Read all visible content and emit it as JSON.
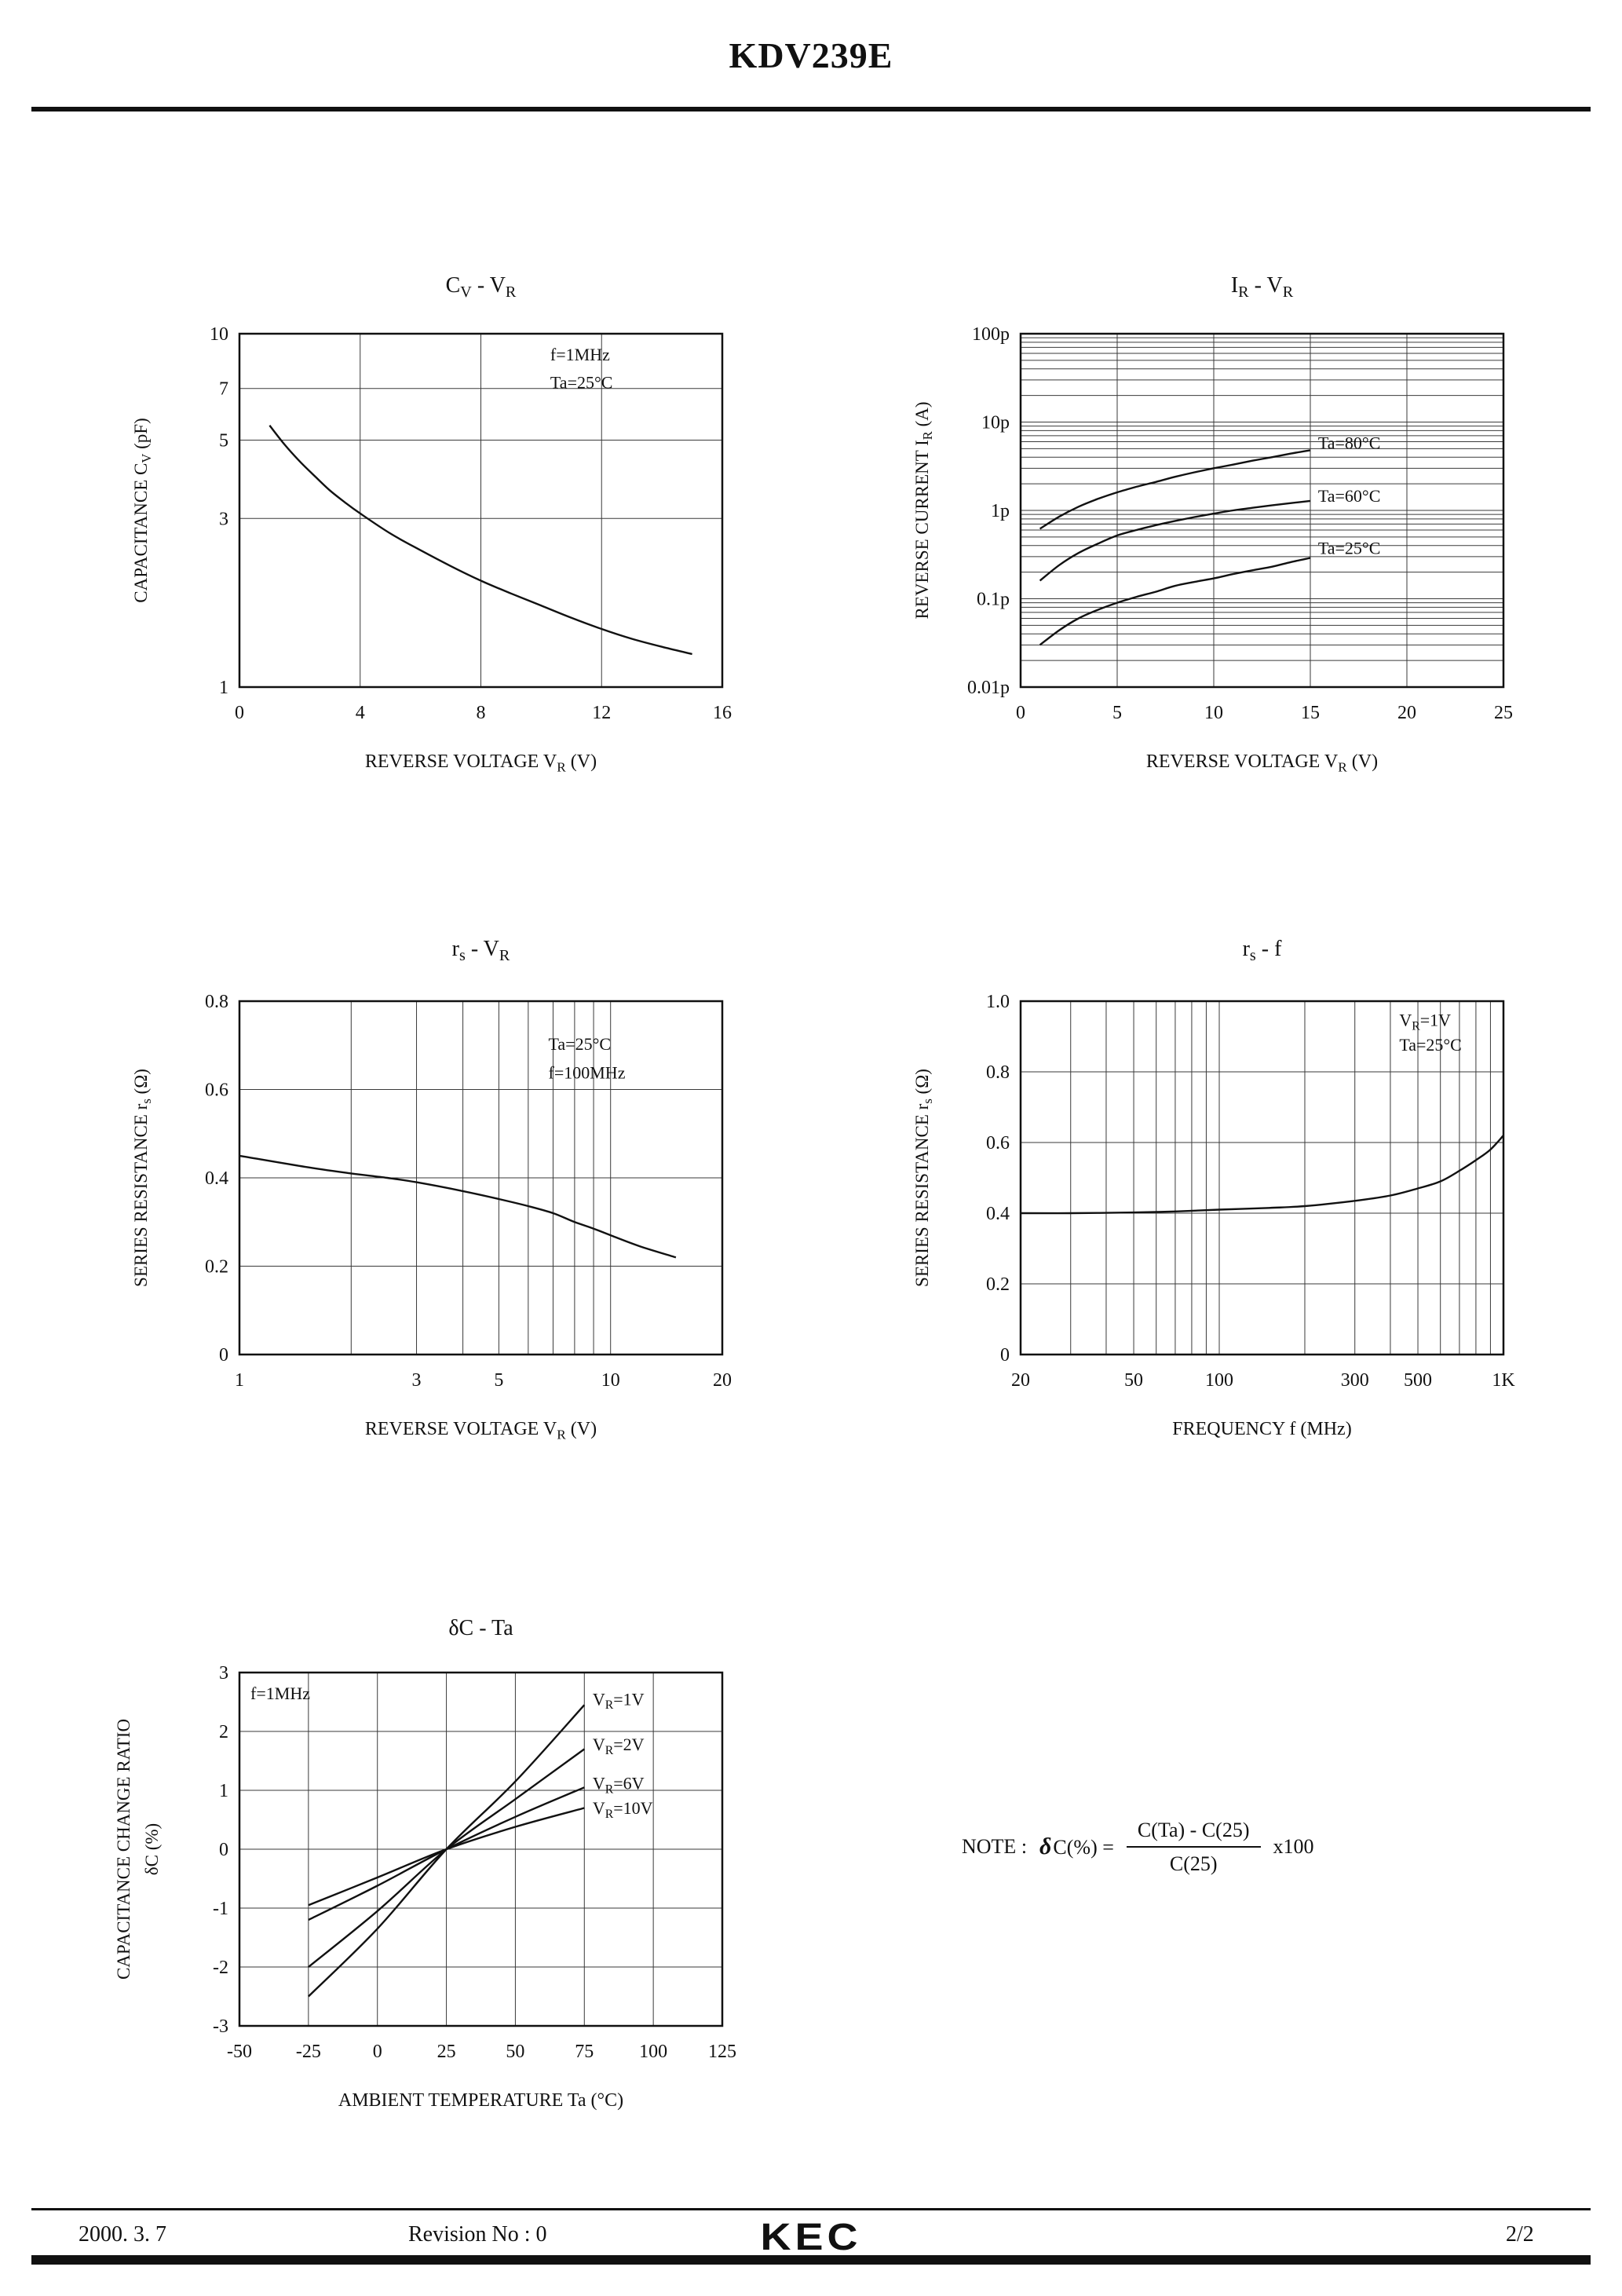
{
  "page": {
    "title": "KDV239E",
    "footer": {
      "date": "2000. 3. 7",
      "revision": "Revision No : 0",
      "logo": "KEC",
      "page_number": "2/2"
    }
  },
  "note": {
    "prefix": "NOTE  :",
    "delta": "δ",
    "lhs": "C(%) =",
    "numerator": "C(Ta)  -  C(25)",
    "denominator": "C(25)",
    "suffix": "x100"
  },
  "chart_data": [
    {
      "id": "cv-vr",
      "type": "line",
      "title": "C_{V}  -  V_{R}",
      "x": {
        "scale": "linear",
        "min": 0,
        "max": 16,
        "label": "REVERSE VOLTAGE V_{R}  (V)",
        "ticks": [
          {
            "v": 0,
            "l": "0"
          },
          {
            "v": 4,
            "l": "4"
          },
          {
            "v": 8,
            "l": "8"
          },
          {
            "v": 12,
            "l": "12"
          },
          {
            "v": 16,
            "l": "16"
          }
        ]
      },
      "y": {
        "scale": "log",
        "min": 1,
        "max": 10,
        "label": "CAPACITANCE C_{V}  (pF)",
        "ticks": [
          {
            "v": 1,
            "l": "1"
          },
          {
            "v": 3,
            "l": "3"
          },
          {
            "v": 5,
            "l": "5"
          },
          {
            "v": 7,
            "l": "7"
          },
          {
            "v": 10,
            "l": "10"
          }
        ]
      },
      "series": [
        {
          "name": "Cv",
          "points": [
            [
              1,
              5.5
            ],
            [
              1.5,
              4.85
            ],
            [
              2,
              4.35
            ],
            [
              2.5,
              3.95
            ],
            [
              3,
              3.6
            ],
            [
              3.5,
              3.33
            ],
            [
              4,
              3.1
            ],
            [
              5,
              2.72
            ],
            [
              6,
              2.44
            ],
            [
              7,
              2.2
            ],
            [
              8,
              2.0
            ],
            [
              9,
              1.84
            ],
            [
              10,
              1.7
            ],
            [
              11,
              1.57
            ],
            [
              12,
              1.46
            ],
            [
              13,
              1.37
            ],
            [
              14,
              1.3
            ],
            [
              15,
              1.24
            ]
          ]
        }
      ],
      "annotations": [
        {
          "text": "f=1MHz",
          "x": 10.3,
          "y": 8.4
        },
        {
          "text": "Ta=25°C",
          "x": 10.3,
          "y": 7.0
        }
      ]
    },
    {
      "id": "ir-vr",
      "type": "line",
      "title": "I_{R}  -  V_{R}",
      "x": {
        "scale": "linear",
        "min": 0,
        "max": 25,
        "label": "REVERSE VOLTAGE V_{R}  (V)",
        "ticks": [
          {
            "v": 0,
            "l": "0"
          },
          {
            "v": 5,
            "l": "5"
          },
          {
            "v": 10,
            "l": "10"
          },
          {
            "v": 15,
            "l": "15"
          },
          {
            "v": 20,
            "l": "20"
          },
          {
            "v": 25,
            "l": "25"
          }
        ]
      },
      "y": {
        "scale": "log",
        "min": 0.01,
        "max": 100,
        "label": "REVERSE CURRENT I_{R}  (A)",
        "ticks": [
          {
            "v": 100,
            "l": "100p"
          },
          {
            "v": 10,
            "l": "10p"
          },
          {
            "v": 1,
            "l": "1p"
          },
          {
            "v": 0.1,
            "l": "0.1p"
          },
          {
            "v": 0.01,
            "l": "0.01p"
          }
        ]
      },
      "series": [
        {
          "name": "Ta=80°C",
          "points": [
            [
              1,
              0.62
            ],
            [
              2,
              0.85
            ],
            [
              3,
              1.1
            ],
            [
              4,
              1.35
            ],
            [
              5,
              1.6
            ],
            [
              6,
              1.85
            ],
            [
              7,
              2.1
            ],
            [
              8,
              2.4
            ],
            [
              9,
              2.7
            ],
            [
              10,
              3.0
            ],
            [
              11,
              3.3
            ],
            [
              12,
              3.65
            ],
            [
              13,
              4.0
            ],
            [
              14,
              4.4
            ],
            [
              15,
              4.8
            ]
          ]
        },
        {
          "name": "Ta=60°C",
          "points": [
            [
              1,
              0.16
            ],
            [
              2,
              0.24
            ],
            [
              3,
              0.33
            ],
            [
              4,
              0.42
            ],
            [
              5,
              0.52
            ],
            [
              6,
              0.6
            ],
            [
              7,
              0.68
            ],
            [
              8,
              0.76
            ],
            [
              9,
              0.84
            ],
            [
              10,
              0.92
            ],
            [
              11,
              1.0
            ],
            [
              12,
              1.07
            ],
            [
              13,
              1.14
            ],
            [
              14,
              1.21
            ],
            [
              15,
              1.28
            ]
          ]
        },
        {
          "name": "Ta=25°C",
          "points": [
            [
              1,
              0.03
            ],
            [
              2,
              0.044
            ],
            [
              3,
              0.06
            ],
            [
              4,
              0.075
            ],
            [
              5,
              0.09
            ],
            [
              6,
              0.105
            ],
            [
              7,
              0.12
            ],
            [
              8,
              0.14
            ],
            [
              9,
              0.155
            ],
            [
              10,
              0.17
            ],
            [
              11,
              0.19
            ],
            [
              12,
              0.21
            ],
            [
              13,
              0.23
            ],
            [
              14,
              0.26
            ],
            [
              15,
              0.29
            ]
          ]
        }
      ],
      "annotations": [
        {
          "text": "Ta=80°C",
          "x": 15.4,
          "y": 5.0
        },
        {
          "text": "Ta=60°C",
          "x": 15.4,
          "y": 1.25
        },
        {
          "text": "Ta=25°C",
          "x": 15.4,
          "y": 0.32
        }
      ]
    },
    {
      "id": "rs-vr",
      "type": "line",
      "title": "r_{s}  -  V_{R}",
      "x": {
        "scale": "log",
        "min": 1,
        "max": 20,
        "label": "REVERSE VOLTAGE V_{R}  (V)",
        "ticks": [
          {
            "v": 1,
            "l": "1"
          },
          {
            "v": 3,
            "l": "3"
          },
          {
            "v": 5,
            "l": "5"
          },
          {
            "v": 10,
            "l": "10"
          },
          {
            "v": 20,
            "l": "20"
          }
        ]
      },
      "y": {
        "scale": "linear",
        "min": 0,
        "max": 0.8,
        "label": "SERIES RESISTANCE r_{s}  (Ω)",
        "ticks": [
          {
            "v": 0,
            "l": "0"
          },
          {
            "v": 0.2,
            "l": "0.2"
          },
          {
            "v": 0.4,
            "l": "0.4"
          },
          {
            "v": 0.6,
            "l": "0.6"
          },
          {
            "v": 0.8,
            "l": "0.8"
          }
        ]
      },
      "series": [
        {
          "name": "rs",
          "points": [
            [
              1,
              0.45
            ],
            [
              1.5,
              0.425
            ],
            [
              2,
              0.41
            ],
            [
              2.5,
              0.4
            ],
            [
              3,
              0.39
            ],
            [
              4,
              0.37
            ],
            [
              5,
              0.352
            ],
            [
              6,
              0.336
            ],
            [
              7,
              0.32
            ],
            [
              8,
              0.3
            ],
            [
              9,
              0.285
            ],
            [
              10,
              0.27
            ],
            [
              12,
              0.245
            ],
            [
              15,
              0.22
            ]
          ]
        }
      ],
      "annotations": [
        {
          "text": "Ta=25°C",
          "x": 6.8,
          "y": 0.69
        },
        {
          "text": "f=100MHz",
          "x": 6.8,
          "y": 0.625
        }
      ]
    },
    {
      "id": "rs-f",
      "type": "line",
      "title": "r_{s}  -  f",
      "x": {
        "scale": "log",
        "min": 20,
        "max": 1000,
        "label": "FREQUENCY  f  (MHz)",
        "ticks": [
          {
            "v": 20,
            "l": "20"
          },
          {
            "v": 50,
            "l": "50"
          },
          {
            "v": 100,
            "l": "100"
          },
          {
            "v": 300,
            "l": "300"
          },
          {
            "v": 500,
            "l": "500"
          },
          {
            "v": 1000,
            "l": "1K"
          }
        ]
      },
      "y": {
        "scale": "linear",
        "min": 0,
        "max": 1.0,
        "label": "SERIES RESISTANCE r_{s}  (Ω)",
        "ticks": [
          {
            "v": 0,
            "l": "0"
          },
          {
            "v": 0.2,
            "l": "0.2"
          },
          {
            "v": 0.4,
            "l": "0.4"
          },
          {
            "v": 0.6,
            "l": "0.6"
          },
          {
            "v": 0.8,
            "l": "0.8"
          },
          {
            "v": 1.0,
            "l": "1.0"
          }
        ]
      },
      "series": [
        {
          "name": "rs",
          "points": [
            [
              20,
              0.4
            ],
            [
              30,
              0.4
            ],
            [
              50,
              0.402
            ],
            [
              70,
              0.405
            ],
            [
              100,
              0.41
            ],
            [
              150,
              0.415
            ],
            [
              200,
              0.42
            ],
            [
              300,
              0.435
            ],
            [
              400,
              0.45
            ],
            [
              500,
              0.47
            ],
            [
              600,
              0.49
            ],
            [
              700,
              0.52
            ],
            [
              800,
              0.55
            ],
            [
              900,
              0.58
            ],
            [
              1000,
              0.62
            ]
          ]
        }
      ],
      "annotations": [
        {
          "text": "V_{R}=1V",
          "x": 430,
          "y": 0.93
        },
        {
          "text": "Ta=25°C",
          "x": 430,
          "y": 0.86
        }
      ]
    },
    {
      "id": "dc-ta",
      "type": "line",
      "title": "δC  -  Ta",
      "x": {
        "scale": "linear",
        "min": -50,
        "max": 125,
        "label": "AMBIENT TEMPERATURE Ta  (°C)",
        "ticks": [
          {
            "v": -50,
            "l": "-50"
          },
          {
            "v": -25,
            "l": "-25"
          },
          {
            "v": 0,
            "l": "0"
          },
          {
            "v": 25,
            "l": "25"
          },
          {
            "v": 50,
            "l": "50"
          },
          {
            "v": 75,
            "l": "75"
          },
          {
            "v": 100,
            "l": "100"
          },
          {
            "v": 125,
            "l": "125"
          }
        ]
      },
      "y": {
        "scale": "linear",
        "min": -3,
        "max": 3,
        "label": [
          "CAPACITANCE CHANGE RATIO",
          "δC (%)"
        ],
        "ticks": [
          {
            "v": -3,
            "l": "-3"
          },
          {
            "v": -2,
            "l": "-2"
          },
          {
            "v": -1,
            "l": "-1"
          },
          {
            "v": 0,
            "l": "0"
          },
          {
            "v": 1,
            "l": "1"
          },
          {
            "v": 2,
            "l": "2"
          },
          {
            "v": 3,
            "l": "3"
          }
        ]
      },
      "series": [
        {
          "name": "VR=1V",
          "points": [
            [
              -25,
              -2.5
            ],
            [
              0,
              -1.35
            ],
            [
              25,
              0
            ],
            [
              50,
              1.15
            ],
            [
              75,
              2.45
            ]
          ]
        },
        {
          "name": "VR=2V",
          "points": [
            [
              -25,
              -2.0
            ],
            [
              0,
              -1.05
            ],
            [
              25,
              0
            ],
            [
              50,
              0.85
            ],
            [
              75,
              1.7
            ]
          ]
        },
        {
          "name": "VR=6V",
          "points": [
            [
              -25,
              -1.2
            ],
            [
              0,
              -0.62
            ],
            [
              25,
              0
            ],
            [
              50,
              0.55
            ],
            [
              75,
              1.05
            ]
          ]
        },
        {
          "name": "VR=10V",
          "points": [
            [
              -25,
              -0.95
            ],
            [
              0,
              -0.48
            ],
            [
              25,
              0
            ],
            [
              50,
              0.38
            ],
            [
              75,
              0.7
            ]
          ]
        }
      ],
      "annotations": [
        {
          "text": "f=1MHz",
          "x": -46,
          "y": 2.55
        },
        {
          "text": "V_{R}=1V",
          "x": 78,
          "y": 2.45
        },
        {
          "text": "V_{R}=2V",
          "x": 78,
          "y": 1.68
        },
        {
          "text": "V_{R}=6V",
          "x": 78,
          "y": 1.02
        },
        {
          "text": "V_{R}=10V",
          "x": 78,
          "y": 0.6
        }
      ]
    }
  ]
}
